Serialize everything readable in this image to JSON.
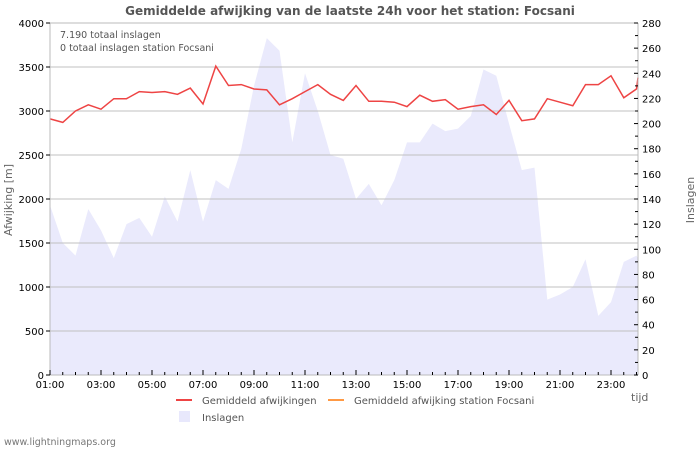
{
  "header": {
    "title": "Gemiddelde afwijking van de laatste 24h voor het station: Focsani"
  },
  "info": {
    "line1": "7.190 totaal inslagen",
    "line2": "0 totaal inslagen station Focsani"
  },
  "axes": {
    "left_title": "Afwijking  [m]",
    "right_title": "Inslagen",
    "x_title": "tijd",
    "left_ticks": [
      "0",
      "500",
      "1000",
      "1500",
      "2000",
      "2500",
      "3000",
      "3500",
      "4000"
    ],
    "right_ticks": [
      "0",
      "20",
      "40",
      "60",
      "80",
      "100",
      "120",
      "140",
      "160",
      "180",
      "200",
      "220",
      "240",
      "260",
      "280"
    ],
    "x_ticks": [
      "01:00",
      "03:00",
      "05:00",
      "07:00",
      "09:00",
      "11:00",
      "13:00",
      "15:00",
      "17:00",
      "19:00",
      "21:00",
      "23:00"
    ]
  },
  "legend": {
    "items": [
      {
        "label": "Gemiddeld afwijkingen",
        "color": "#ee4444"
      },
      {
        "label": "Gemiddeld afwijking station Focsani",
        "color": "#ff9944"
      },
      {
        "label": "Inslagen",
        "color": "#e8e8fc"
      }
    ]
  },
  "footer": {
    "source": "www.lightningmaps.org"
  },
  "colors": {
    "deviation_line": "#ee4444",
    "station_line": "#ff9944",
    "strikes_fill": "#eaeafc",
    "grid": "#c0c0c0"
  },
  "chart_data": {
    "type": "line+area",
    "title": "Gemiddelde afwijking van de laatste 24h voor het station: Focsani",
    "xlabel": "tijd",
    "ylabel": "Afwijking  [m]",
    "y2label": "Inslagen",
    "ylim": [
      0,
      4000
    ],
    "y2lim": [
      0,
      280
    ],
    "grid": true,
    "legend_position": "bottom",
    "x": [
      "01:00",
      "01:30",
      "02:00",
      "02:30",
      "03:00",
      "03:30",
      "04:00",
      "04:30",
      "05:00",
      "05:30",
      "06:00",
      "06:30",
      "07:00",
      "07:30",
      "08:00",
      "08:30",
      "09:00",
      "09:30",
      "10:00",
      "10:30",
      "11:00",
      "11:30",
      "12:00",
      "12:30",
      "13:00",
      "13:30",
      "14:00",
      "14:30",
      "15:00",
      "15:30",
      "16:00",
      "16:30",
      "17:00",
      "17:30",
      "18:00",
      "18:30",
      "19:00",
      "19:30",
      "20:00",
      "20:30",
      "21:00",
      "21:30",
      "22:00",
      "22:30",
      "23:00",
      "23:30",
      "24:00",
      "24:05"
    ],
    "series": [
      {
        "name": "Gemiddeld afwijkingen",
        "axis": "left",
        "type": "line",
        "values": [
          2910,
          2870,
          3000,
          3070,
          3020,
          3140,
          3140,
          3220,
          3210,
          3220,
          3190,
          3260,
          3080,
          3510,
          3290,
          3300,
          3250,
          3240,
          3070,
          3140,
          3220,
          3300,
          3190,
          3120,
          3290,
          3110,
          3110,
          3100,
          3050,
          3180,
          3110,
          3130,
          3020,
          3050,
          3070,
          2960,
          3120,
          2890,
          2910,
          3140,
          3100,
          3060,
          3300,
          3300,
          3400,
          3150,
          3250,
          3380
        ]
      },
      {
        "name": "Gemiddeld afwijking station Focsani",
        "axis": "left",
        "type": "line",
        "values": []
      },
      {
        "name": "Inslagen",
        "axis": "right",
        "type": "area",
        "values": [
          135,
          105,
          95,
          132,
          115,
          93,
          120,
          125,
          110,
          142,
          122,
          163,
          122,
          155,
          148,
          180,
          230,
          268,
          258,
          185,
          240,
          210,
          175,
          172,
          140,
          152,
          135,
          155,
          185,
          185,
          200,
          194,
          196,
          206,
          243,
          238,
          200,
          163,
          165,
          60,
          64,
          70,
          92,
          47,
          58,
          90,
          95,
          93
        ]
      }
    ],
    "totals": {
      "total_strikes": "7.190",
      "station_strikes": "0"
    }
  }
}
